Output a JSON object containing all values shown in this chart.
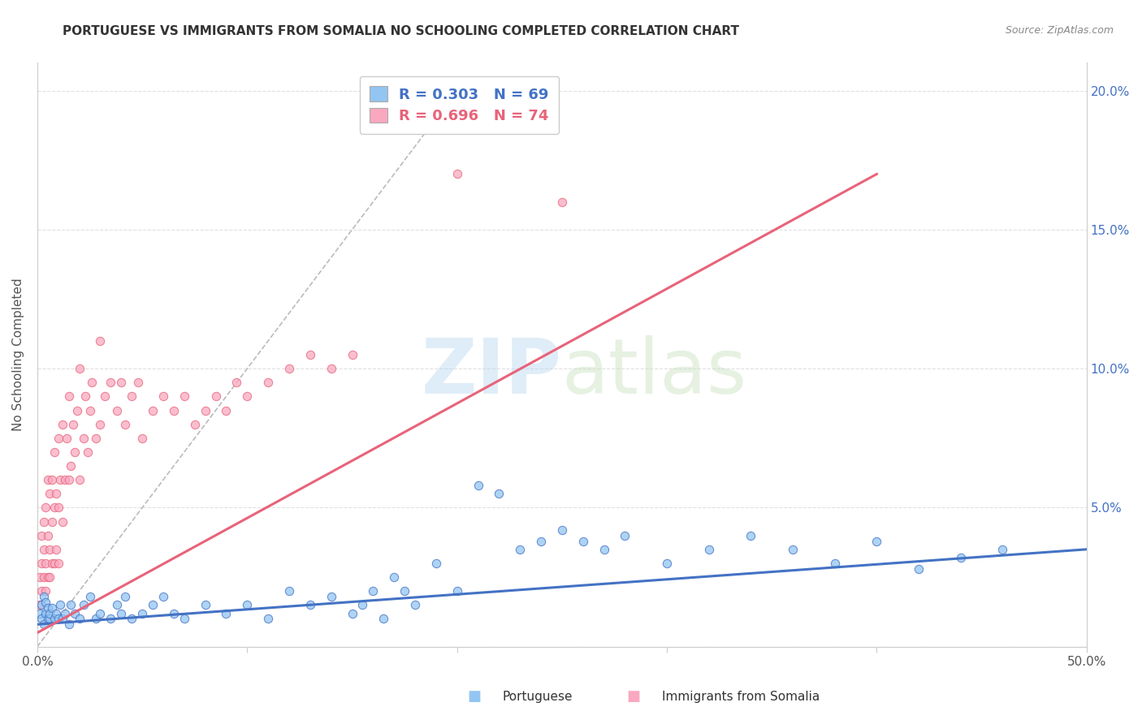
{
  "title": "PORTUGUESE VS IMMIGRANTS FROM SOMALIA NO SCHOOLING COMPLETED CORRELATION CHART",
  "source": "Source: ZipAtlas.com",
  "ylabel": "No Schooling Completed",
  "xlim": [
    0.0,
    0.5
  ],
  "ylim": [
    0.0,
    0.21
  ],
  "blue_R": 0.303,
  "blue_N": 69,
  "pink_R": 0.696,
  "pink_N": 74,
  "blue_color": "#92C5F2",
  "pink_color": "#F9A8C0",
  "blue_line_color": "#4472C4",
  "pink_line_color": "#E8637A",
  "legend_label_blue": "Portuguese",
  "legend_label_pink": "Immigrants from Somalia",
  "background_color": "#ffffff",
  "grid_color": "#e0e0e0",
  "blue_points_x": [
    0.001,
    0.002,
    0.002,
    0.003,
    0.003,
    0.004,
    0.004,
    0.005,
    0.005,
    0.006,
    0.006,
    0.007,
    0.008,
    0.009,
    0.01,
    0.011,
    0.012,
    0.013,
    0.015,
    0.016,
    0.018,
    0.02,
    0.022,
    0.025,
    0.028,
    0.03,
    0.035,
    0.038,
    0.04,
    0.042,
    0.045,
    0.05,
    0.055,
    0.06,
    0.065,
    0.07,
    0.08,
    0.09,
    0.1,
    0.11,
    0.12,
    0.13,
    0.14,
    0.15,
    0.155,
    0.16,
    0.165,
    0.17,
    0.175,
    0.18,
    0.19,
    0.2,
    0.21,
    0.22,
    0.23,
    0.24,
    0.25,
    0.26,
    0.27,
    0.28,
    0.3,
    0.32,
    0.34,
    0.36,
    0.38,
    0.4,
    0.42,
    0.44,
    0.46
  ],
  "blue_points_y": [
    0.012,
    0.015,
    0.01,
    0.018,
    0.008,
    0.012,
    0.016,
    0.01,
    0.014,
    0.01,
    0.012,
    0.014,
    0.01,
    0.012,
    0.01,
    0.015,
    0.01,
    0.012,
    0.008,
    0.015,
    0.012,
    0.01,
    0.015,
    0.018,
    0.01,
    0.012,
    0.01,
    0.015,
    0.012,
    0.018,
    0.01,
    0.012,
    0.015,
    0.018,
    0.012,
    0.01,
    0.015,
    0.012,
    0.015,
    0.01,
    0.02,
    0.015,
    0.018,
    0.012,
    0.015,
    0.02,
    0.01,
    0.025,
    0.02,
    0.015,
    0.03,
    0.02,
    0.058,
    0.055,
    0.035,
    0.038,
    0.042,
    0.038,
    0.035,
    0.04,
    0.03,
    0.035,
    0.04,
    0.035,
    0.03,
    0.038,
    0.028,
    0.032,
    0.035
  ],
  "pink_points_x": [
    0.001,
    0.001,
    0.002,
    0.002,
    0.002,
    0.003,
    0.003,
    0.003,
    0.004,
    0.004,
    0.004,
    0.005,
    0.005,
    0.005,
    0.006,
    0.006,
    0.006,
    0.007,
    0.007,
    0.007,
    0.008,
    0.008,
    0.008,
    0.009,
    0.009,
    0.01,
    0.01,
    0.01,
    0.011,
    0.012,
    0.012,
    0.013,
    0.014,
    0.015,
    0.015,
    0.016,
    0.017,
    0.018,
    0.019,
    0.02,
    0.02,
    0.022,
    0.023,
    0.024,
    0.025,
    0.026,
    0.028,
    0.03,
    0.03,
    0.032,
    0.035,
    0.038,
    0.04,
    0.042,
    0.045,
    0.048,
    0.05,
    0.055,
    0.06,
    0.065,
    0.07,
    0.075,
    0.08,
    0.085,
    0.09,
    0.095,
    0.1,
    0.11,
    0.12,
    0.13,
    0.14,
    0.15,
    0.2,
    0.25
  ],
  "pink_points_y": [
    0.015,
    0.025,
    0.02,
    0.03,
    0.04,
    0.025,
    0.035,
    0.045,
    0.02,
    0.03,
    0.05,
    0.025,
    0.04,
    0.06,
    0.025,
    0.035,
    0.055,
    0.03,
    0.045,
    0.06,
    0.03,
    0.05,
    0.07,
    0.035,
    0.055,
    0.03,
    0.05,
    0.075,
    0.06,
    0.045,
    0.08,
    0.06,
    0.075,
    0.06,
    0.09,
    0.065,
    0.08,
    0.07,
    0.085,
    0.06,
    0.1,
    0.075,
    0.09,
    0.07,
    0.085,
    0.095,
    0.075,
    0.08,
    0.11,
    0.09,
    0.095,
    0.085,
    0.095,
    0.08,
    0.09,
    0.095,
    0.075,
    0.085,
    0.09,
    0.085,
    0.09,
    0.08,
    0.085,
    0.09,
    0.085,
    0.095,
    0.09,
    0.095,
    0.1,
    0.105,
    0.1,
    0.105,
    0.17,
    0.16
  ],
  "blue_trend_x": [
    0.0,
    0.5
  ],
  "blue_trend_y": [
    0.008,
    0.035
  ],
  "pink_trend_x": [
    0.0,
    0.4
  ],
  "pink_trend_y": [
    0.005,
    0.17
  ],
  "ref_line_x": [
    0.0,
    0.205
  ],
  "ref_line_y": [
    0.0,
    0.205
  ]
}
